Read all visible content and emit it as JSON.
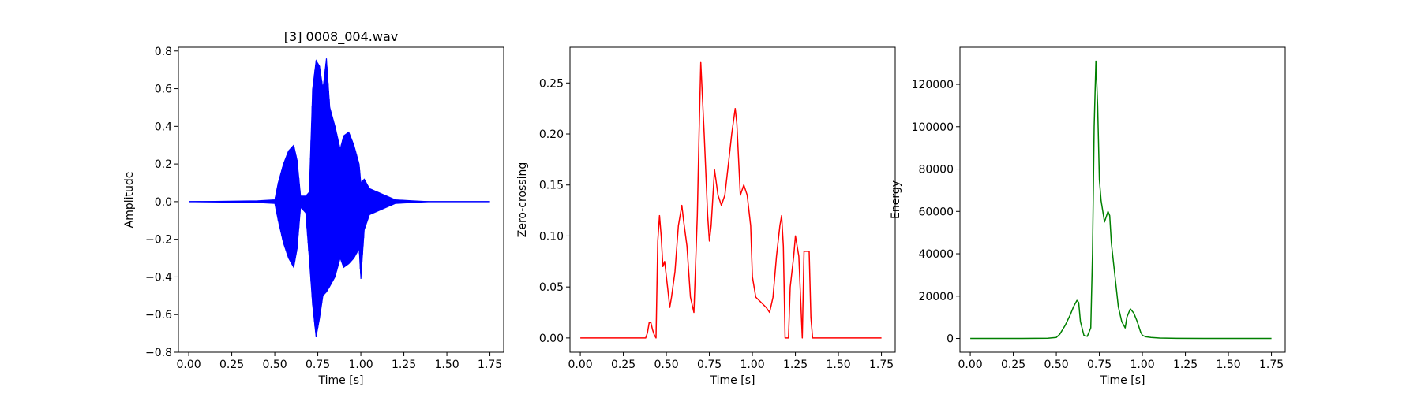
{
  "chart_data": [
    {
      "type": "line",
      "title": "[3] 0008_004.wav",
      "xlabel": "Time [s]",
      "ylabel": "Amplitude",
      "xlim": [
        -0.06,
        1.83
      ],
      "ylim": [
        -0.8,
        0.82
      ],
      "xticks": [
        "0.00",
        "0.25",
        "0.50",
        "0.75",
        "1.00",
        "1.25",
        "1.50",
        "1.75"
      ],
      "yticks": [
        "−0.8",
        "−0.6",
        "−0.4",
        "−0.2",
        "0.0",
        "0.2",
        "0.4",
        "0.6",
        "0.8"
      ],
      "grid": false,
      "color": "#0000ff",
      "series": [
        {
          "kind": "envelope",
          "x": [
            0.0,
            0.4,
            0.5,
            0.52,
            0.55,
            0.58,
            0.61,
            0.63,
            0.65,
            0.68,
            0.7,
            0.72,
            0.74,
            0.76,
            0.78,
            0.8,
            0.82,
            0.85,
            0.88,
            0.9,
            0.93,
            0.96,
            0.99,
            1.0,
            1.02,
            1.05,
            1.1,
            1.15,
            1.2,
            1.3,
            1.4,
            1.75
          ],
          "upper": [
            0.0,
            0.005,
            0.01,
            0.1,
            0.2,
            0.27,
            0.3,
            0.22,
            0.03,
            0.03,
            0.05,
            0.6,
            0.75,
            0.72,
            0.6,
            0.76,
            0.5,
            0.4,
            0.28,
            0.35,
            0.37,
            0.3,
            0.2,
            0.1,
            0.12,
            0.07,
            0.05,
            0.03,
            0.01,
            0.005,
            0.0,
            0.0
          ],
          "lower": [
            0.0,
            -0.005,
            -0.01,
            -0.1,
            -0.22,
            -0.3,
            -0.35,
            -0.25,
            -0.03,
            -0.06,
            -0.3,
            -0.55,
            -0.72,
            -0.62,
            -0.5,
            -0.48,
            -0.45,
            -0.4,
            -0.3,
            -0.35,
            -0.33,
            -0.3,
            -0.25,
            -0.41,
            -0.15,
            -0.07,
            -0.05,
            -0.03,
            -0.01,
            -0.005,
            0.0,
            0.0
          ]
        }
      ]
    },
    {
      "type": "line",
      "title": "",
      "xlabel": "Time [s]",
      "ylabel": "Zero-crossing",
      "xlim": [
        -0.06,
        1.83
      ],
      "ylim": [
        -0.014,
        0.285
      ],
      "xticks": [
        "0.00",
        "0.25",
        "0.50",
        "0.75",
        "1.00",
        "1.25",
        "1.50",
        "1.75"
      ],
      "yticks": [
        "0.00",
        "0.05",
        "0.10",
        "0.15",
        "0.20",
        "0.25"
      ],
      "grid": false,
      "color": "#ff0000",
      "series": [
        {
          "x": [
            0.0,
            0.38,
            0.39,
            0.4,
            0.41,
            0.42,
            0.43,
            0.44,
            0.45,
            0.46,
            0.47,
            0.48,
            0.49,
            0.5,
            0.51,
            0.52,
            0.53,
            0.55,
            0.57,
            0.59,
            0.6,
            0.62,
            0.64,
            0.66,
            0.68,
            0.69,
            0.7,
            0.72,
            0.74,
            0.75,
            0.76,
            0.78,
            0.8,
            0.82,
            0.84,
            0.86,
            0.88,
            0.9,
            0.91,
            0.93,
            0.95,
            0.97,
            0.99,
            1.0,
            1.02,
            1.05,
            1.08,
            1.1,
            1.12,
            1.14,
            1.16,
            1.17,
            1.18,
            1.19,
            1.21,
            1.22,
            1.24,
            1.25,
            1.27,
            1.28,
            1.29,
            1.3,
            1.33,
            1.34,
            1.35,
            1.36,
            1.38,
            1.75
          ],
          "y": [
            0.0,
            0.0,
            0.005,
            0.015,
            0.015,
            0.008,
            0.003,
            0.0,
            0.095,
            0.12,
            0.1,
            0.07,
            0.075,
            0.06,
            0.045,
            0.03,
            0.04,
            0.065,
            0.11,
            0.13,
            0.115,
            0.09,
            0.04,
            0.025,
            0.12,
            0.2,
            0.27,
            0.2,
            0.12,
            0.095,
            0.11,
            0.165,
            0.14,
            0.13,
            0.14,
            0.17,
            0.2,
            0.225,
            0.21,
            0.14,
            0.15,
            0.14,
            0.11,
            0.06,
            0.04,
            0.035,
            0.03,
            0.025,
            0.04,
            0.08,
            0.11,
            0.12,
            0.09,
            0.0,
            0.0,
            0.05,
            0.08,
            0.1,
            0.08,
            0.04,
            0.0,
            0.085,
            0.085,
            0.02,
            0.0,
            0.0,
            0.0,
            0.0
          ]
        }
      ]
    },
    {
      "type": "line",
      "title": "",
      "xlabel": "Time [s]",
      "ylabel": "Energy",
      "xlim": [
        -0.06,
        1.83
      ],
      "ylim": [
        -6500,
        137500
      ],
      "xticks": [
        "0.00",
        "0.25",
        "0.50",
        "0.75",
        "1.00",
        "1.25",
        "1.50",
        "1.75"
      ],
      "yticks": [
        "0",
        "20000",
        "40000",
        "60000",
        "80000",
        "100000",
        "120000"
      ],
      "grid": false,
      "color": "#008000",
      "series": [
        {
          "x": [
            0.0,
            0.3,
            0.45,
            0.5,
            0.52,
            0.55,
            0.58,
            0.6,
            0.62,
            0.63,
            0.64,
            0.66,
            0.68,
            0.7,
            0.71,
            0.72,
            0.73,
            0.74,
            0.75,
            0.76,
            0.78,
            0.8,
            0.81,
            0.82,
            0.84,
            0.86,
            0.88,
            0.9,
            0.91,
            0.93,
            0.95,
            0.97,
            0.99,
            1.0,
            1.02,
            1.05,
            1.1,
            1.2,
            1.5,
            1.75
          ],
          "y": [
            0,
            0,
            100,
            500,
            2000,
            6000,
            11000,
            15000,
            18000,
            17000,
            8000,
            1500,
            1000,
            5000,
            40000,
            100000,
            131000,
            110000,
            75000,
            65000,
            55000,
            60000,
            58000,
            45000,
            30000,
            15000,
            8000,
            5000,
            10000,
            14000,
            12000,
            8000,
            3000,
            1500,
            800,
            500,
            200,
            50,
            0,
            0
          ]
        }
      ]
    }
  ]
}
